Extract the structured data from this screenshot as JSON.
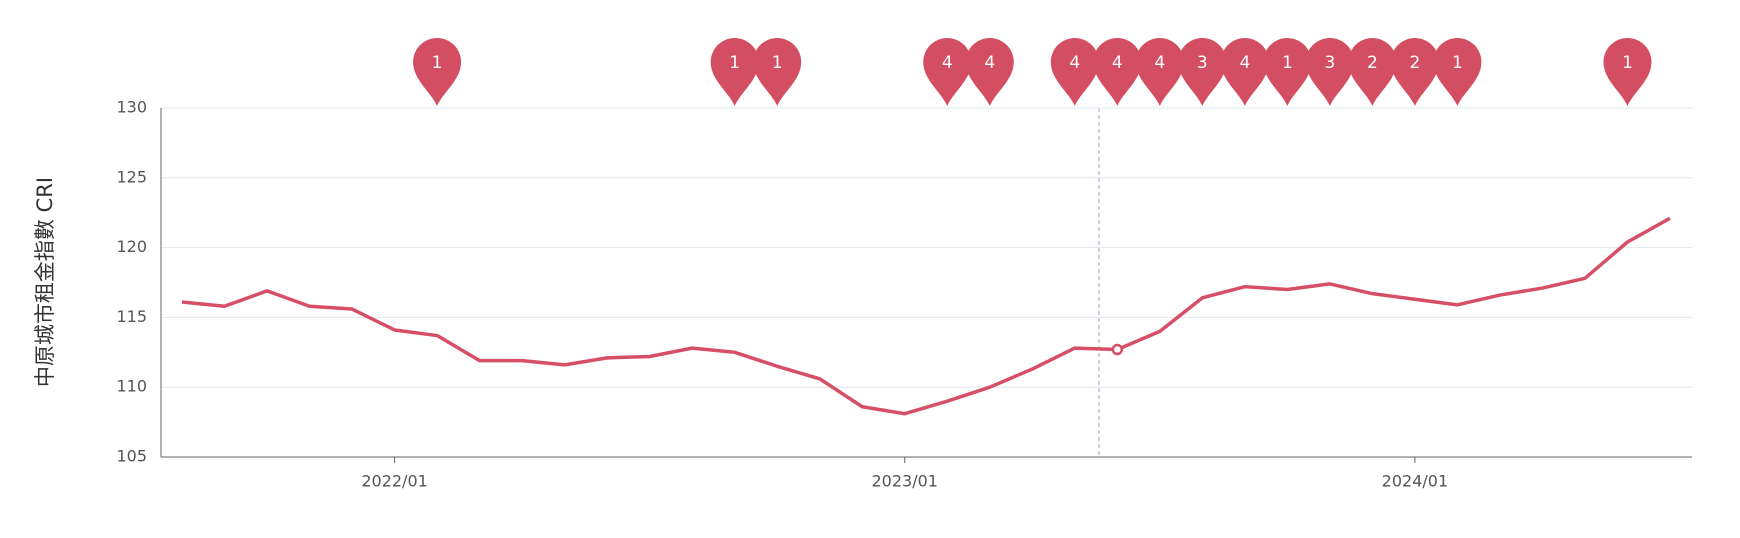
{
  "chart_data": {
    "type": "line",
    "y_label": "中原城市租金指數 CRI",
    "x": [
      "2021/08",
      "2021/09",
      "2021/10",
      "2021/11",
      "2021/12",
      "2022/01",
      "2022/02",
      "2022/03",
      "2022/04",
      "2022/05",
      "2022/06",
      "2022/07",
      "2022/08",
      "2022/09",
      "2022/10",
      "2022/11",
      "2022/12",
      "2023/01",
      "2023/02",
      "2023/03",
      "2023/04",
      "2023/05",
      "2023/06",
      "2023/07",
      "2023/08",
      "2023/09",
      "2023/10",
      "2023/11",
      "2023/12",
      "2024/01",
      "2024/02",
      "2024/03",
      "2024/04",
      "2024/05",
      "2024/06",
      "2024/07"
    ],
    "series": [
      {
        "color": "#d64f66",
        "values": [
          116.1,
          115.8,
          116.9,
          115.8,
          115.6,
          114.1,
          113.7,
          111.9,
          111.9,
          111.6,
          112.1,
          112.2,
          112.8,
          112.5,
          111.5,
          110.6,
          108.6,
          108.1,
          109.0,
          110.0,
          111.3,
          112.8,
          112.7,
          114.0,
          116.4,
          117.2,
          117.0,
          117.4,
          116.7,
          116.3,
          115.9,
          116.6,
          117.1,
          117.8,
          120.4,
          122.1
        ]
      }
    ],
    "markers": {
      "color": "#d34d63",
      "x": [
        "2022/02",
        "2022/09",
        "2022/10",
        "2023/02",
        "2023/03",
        "2023/05",
        "2023/06",
        "2023/07",
        "2023/08",
        "2023/09",
        "2023/10",
        "2023/11",
        "2023/12",
        "2024/01",
        "2024/02",
        "2024/06"
      ],
      "values": [
        1,
        1,
        1,
        4,
        4,
        4,
        4,
        4,
        3,
        4,
        1,
        3,
        2,
        2,
        1,
        1
      ]
    },
    "xticks": [
      "2022/01",
      "2023/01",
      "2024/01"
    ],
    "ylim": [
      105,
      130
    ],
    "yticks": [
      105,
      110,
      115,
      120,
      125,
      130
    ],
    "grid": true
  }
}
